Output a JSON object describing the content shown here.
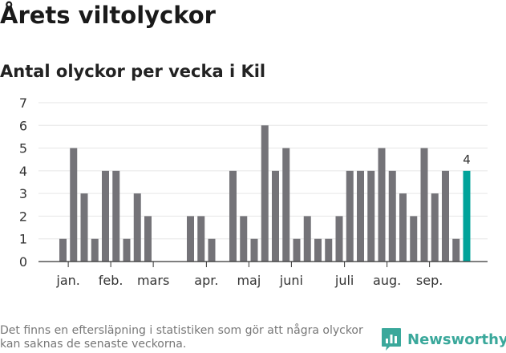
{
  "title": "Årets viltolyckor",
  "subtitle": "Antal olyckor per vecka i Kil",
  "footnote": "Det finns en eftersläpning i statistiken som gör att några olyckor kan saknas de senaste veckorna.",
  "brand": {
    "name": "Newsworthy",
    "icon": "newsworthy-logo-icon",
    "color": "#3aa89b"
  },
  "colors": {
    "bar": "#747378",
    "highlight": "#00a39a",
    "grid": "#e6e6e6",
    "axis": "#333333"
  },
  "chart_data": {
    "type": "bar",
    "x": [
      2,
      3,
      4,
      5,
      6,
      7,
      8,
      9,
      10,
      11,
      12,
      13,
      14,
      15,
      16,
      17,
      18,
      19,
      20,
      21,
      22,
      23,
      24,
      25,
      26,
      27,
      28,
      29,
      30,
      31,
      32,
      33,
      34,
      35,
      36,
      37,
      38,
      39,
      40
    ],
    "values": [
      1,
      5,
      3,
      1,
      4,
      4,
      1,
      3,
      2,
      0,
      0,
      0,
      2,
      2,
      1,
      0,
      4,
      2,
      1,
      6,
      4,
      5,
      1,
      2,
      1,
      1,
      2,
      4,
      4,
      4,
      5,
      4,
      3,
      2,
      5,
      3,
      4,
      1,
      4
    ],
    "highlight_last": true,
    "highlight_label": "4",
    "ylim": [
      0,
      7
    ],
    "yticks": [
      0,
      1,
      2,
      3,
      4,
      5,
      6,
      7
    ],
    "grid": true,
    "month_labels": [
      {
        "label": "jan.",
        "x": 2.5
      },
      {
        "label": "feb.",
        "x": 6.5
      },
      {
        "label": "mars",
        "x": 10.5
      },
      {
        "label": "apr.",
        "x": 15.5
      },
      {
        "label": "maj",
        "x": 19.5
      },
      {
        "label": "juni",
        "x": 23.5
      },
      {
        "label": "juli",
        "x": 28.5
      },
      {
        "label": "aug.",
        "x": 32.5
      },
      {
        "label": "sep.",
        "x": 36.5
      }
    ]
  }
}
